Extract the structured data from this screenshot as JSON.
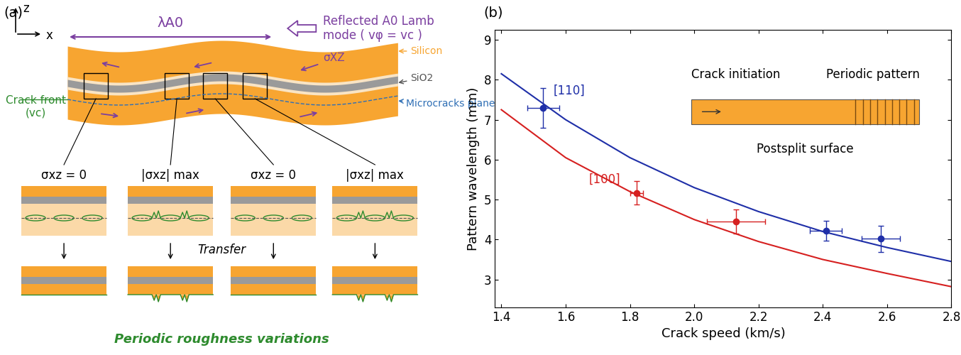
{
  "panel_a": {
    "label": "(a)",
    "axis_labels": [
      "z",
      "x"
    ],
    "wavelength_label": "λA0",
    "wave_label": "Reflected A0 Lamb\nmode ( vφ = vc )",
    "layers": [
      "Silicon",
      "SiO2",
      "Microcracks plane"
    ],
    "crack_front": "Crack front\n(vc)",
    "stress_label": "σXZ",
    "states": [
      "σxz = 0",
      "|σxz| max",
      "σxz = 0",
      "|σxz| max"
    ],
    "transfer": "Transfer",
    "result": "Periodic roughness variations"
  },
  "chart_data": {
    "type": "scatter",
    "panel_label": "(b)",
    "x_label": "Crack speed (km/s)",
    "y_label": "Pattern wavelength (mm)",
    "xlim": [
      1.38,
      2.8
    ],
    "xticks": [
      1.4,
      1.6,
      1.8,
      2.0,
      2.2,
      2.4,
      2.6,
      2.8
    ],
    "ylim": [
      2.3,
      9.25
    ],
    "yticks": [
      3,
      4,
      5,
      6,
      7,
      8,
      9
    ],
    "marker": "o",
    "series": [
      {
        "name": "[110]",
        "color": "#1f2fa8",
        "x": [
          1.53,
          2.41,
          2.58
        ],
        "values": [
          7.3,
          4.22,
          4.02
        ],
        "x_err": [
          0.05,
          0.05,
          0.06
        ],
        "y_err": [
          0.5,
          0.25,
          0.33
        ],
        "fit_x": [
          1.4,
          1.6,
          1.8,
          2.0,
          2.2,
          2.4,
          2.6,
          2.8
        ],
        "fit_values": [
          8.15,
          7.0,
          6.05,
          5.3,
          4.7,
          4.2,
          3.8,
          3.45
        ]
      },
      {
        "name": "[100]",
        "color": "#d62020",
        "x": [
          1.82,
          2.13
        ],
        "values": [
          5.17,
          4.45
        ],
        "x_err": [
          0.02,
          0.09
        ],
        "y_err": [
          0.3,
          0.3
        ],
        "fit_x": [
          1.4,
          1.6,
          1.8,
          2.0,
          2.2,
          2.4,
          2.6,
          2.8
        ],
        "fit_values": [
          7.25,
          6.05,
          5.2,
          4.5,
          3.95,
          3.5,
          3.15,
          2.82
        ]
      }
    ],
    "inset": {
      "start": "Crack initiation",
      "end": "Periodic pattern",
      "caption": "Postsplit surface"
    }
  }
}
